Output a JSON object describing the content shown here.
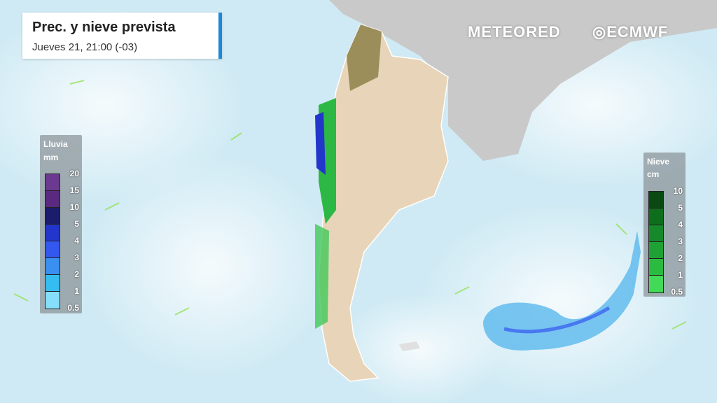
{
  "header": {
    "title": "Prec. y nieve prevista",
    "subtitle": "Jueves 21, 21:00 (-03)"
  },
  "logos": {
    "meteored": "METEORED",
    "ecmwf": "ECMWF"
  },
  "rain_legend": {
    "title": "Lluvia",
    "unit": "mm",
    "ticks": [
      "20",
      "15",
      "10",
      "5",
      "4",
      "3",
      "2",
      "1",
      "0.5"
    ],
    "colors": [
      "#6b3a90",
      "#5a2a80",
      "#1c1c6c",
      "#2236cc",
      "#3358f0",
      "#3a90f0",
      "#35bdf2",
      "#86dffa"
    ]
  },
  "snow_legend": {
    "title": "Nieve",
    "unit": "cm",
    "ticks": [
      "10",
      "5",
      "4",
      "3",
      "2",
      "1",
      "0.5"
    ],
    "colors": [
      "#0a4a12",
      "#0d6e1c",
      "#16892b",
      "#1fa235",
      "#2abb40",
      "#42da56"
    ]
  },
  "colors": {
    "ocean": "#cfeaf4",
    "land": "#e8d4b8",
    "neighbors": "#c9c9c9",
    "accent": "#1e88d8"
  }
}
